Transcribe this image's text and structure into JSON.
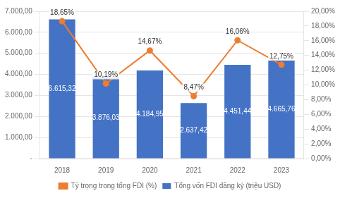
{
  "chart_data": {
    "type": "bar",
    "categories": [
      "2018",
      "2019",
      "2020",
      "2021",
      "2022",
      "2023"
    ],
    "series": [
      {
        "name": "Tổng vốn FDI đăng ký (triệu USD)",
        "type": "bar",
        "color": "#4472C4",
        "values": [
          6615.32,
          3876.03,
          4184.95,
          2637.42,
          4451.44,
          4665.76
        ],
        "value_labels": [
          "6.615,32",
          "3.876,03",
          "4.184,95",
          "2.637,42",
          "4.451,44",
          "4.665,76"
        ]
      },
      {
        "name": "Tỷ trọng trong tổng FDI (%)",
        "type": "line",
        "color": "#ED7D31",
        "marker": "circle",
        "axis": "y2",
        "values": [
          18.65,
          10.19,
          14.67,
          8.47,
          16.06,
          12.75
        ],
        "value_labels": [
          "18,65%",
          "10,19%",
          "14,67%",
          "8,47%",
          "16,06%",
          "12,75%"
        ]
      }
    ],
    "ylim": [
      0,
      7000
    ],
    "yticks": [
      {
        "value": 0,
        "label": "-"
      },
      {
        "value": 1000,
        "label": "1.000,00"
      },
      {
        "value": 2000,
        "label": "2.000,00"
      },
      {
        "value": 3000,
        "label": "3.000,00"
      },
      {
        "value": 4000,
        "label": "4.000,00"
      },
      {
        "value": 5000,
        "label": "5.000,00"
      },
      {
        "value": 6000,
        "label": "6.000,00"
      },
      {
        "value": 7000,
        "label": "7.000,00"
      }
    ],
    "y2lim": [
      0,
      20
    ],
    "y2ticks": [
      {
        "value": 0,
        "label": "0,00%"
      },
      {
        "value": 2,
        "label": "2,00%"
      },
      {
        "value": 4,
        "label": "4,00%"
      },
      {
        "value": 6,
        "label": "6,00%"
      },
      {
        "value": 8,
        "label": "8,00%"
      },
      {
        "value": 10,
        "label": "10,00%"
      },
      {
        "value": 12,
        "label": "12,00%"
      },
      {
        "value": 14,
        "label": "14,00%"
      },
      {
        "value": 16,
        "label": "16,00%"
      },
      {
        "value": 18,
        "label": "18,00%"
      },
      {
        "value": 20,
        "label": "20,00%"
      }
    ],
    "grid": true,
    "legend": "bottom",
    "data_labels": true
  }
}
